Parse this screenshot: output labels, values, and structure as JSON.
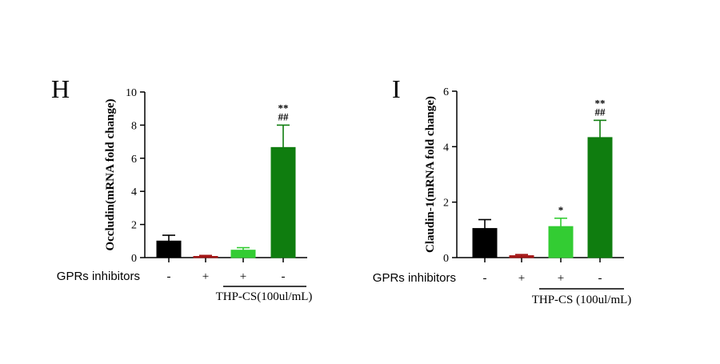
{
  "chart_data": [
    {
      "type": "bar",
      "panel_label": "H",
      "ylabel": "Occludin(mRNA fold change)",
      "ylim": [
        0,
        10
      ],
      "yticks": [
        0,
        2,
        4,
        6,
        8,
        10
      ],
      "categories": [
        "-",
        "+",
        "+",
        "-"
      ],
      "values": [
        1.0,
        0.07,
        0.45,
        6.65
      ],
      "errors": [
        0.35,
        0.06,
        0.15,
        1.35
      ],
      "colors": [
        "#000000",
        "#a31515",
        "#33cc33",
        "#0f7d0f"
      ],
      "annotations": [
        "",
        "",
        "",
        "**\n##"
      ],
      "row_label": "GPRs inhibitors",
      "group_label": "THP-CS(100ul/mL)"
    },
    {
      "type": "bar",
      "panel_label": "I",
      "ylabel": "Claudin-1(mRNA fold change)",
      "ylim": [
        0,
        6
      ],
      "yticks": [
        0,
        2,
        4,
        6
      ],
      "categories": [
        "-",
        "+",
        "+",
        "-"
      ],
      "values": [
        1.05,
        0.07,
        1.12,
        4.33
      ],
      "errors": [
        0.32,
        0.04,
        0.3,
        0.62
      ],
      "colors": [
        "#000000",
        "#a31515",
        "#33cc33",
        "#0f7d0f"
      ],
      "annotations": [
        "",
        "",
        "*",
        "**\n##"
      ],
      "row_label": "GPRs inhibitors",
      "group_label": "THP-CS (100ul/mL)"
    }
  ]
}
